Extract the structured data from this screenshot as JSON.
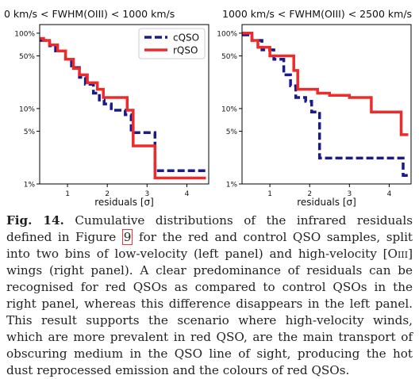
{
  "figure": {
    "caption_label": "Fig. 14.",
    "caption_text_1": "Cumulative distributions of the infrared residuals defined in Figure",
    "caption_ref": "9",
    "caption_text_2": "for the red and control QSO samples, split into two bins of low-velocity (left panel) and high-velocity [O",
    "caption_roman": "iii",
    "caption_text_3": "] wings (right panel). A clear predominance of residuals can be recognised for red QSOs as compared to control QSOs in the right panel, whereas this difference disappears in the left panel. This result supports the scenario where high-velocity winds, which are more prevalent in red QSO, are the main transport of obscuring medium in the QSO line of sight, producing the hot dust reprocessed emission and the colours of red QSOs."
  },
  "chart_data": [
    {
      "type": "line",
      "step": true,
      "title": "0 km/s < FWHM(OIII) < 1000 km/s",
      "xlabel": "residuals [σ]",
      "ylabel": "",
      "xlim": [
        0.3,
        4.55
      ],
      "ylim": [
        1,
        130
      ],
      "yscale": "log",
      "xticks": [
        1,
        2,
        3,
        4
      ],
      "yticks": [
        {
          "v": 1,
          "label": "1%"
        },
        {
          "v": 5,
          "label": "5%"
        },
        {
          "v": 10,
          "label": "10%"
        },
        {
          "v": 50,
          "label": "50%"
        },
        {
          "v": 100,
          "label": "100%"
        }
      ],
      "legend": "top-right",
      "series": [
        {
          "name": "cQSO",
          "color": "#1a1a8c",
          "dash": true,
          "x": [
            0.3,
            0.55,
            0.7,
            0.95,
            1.1,
            1.3,
            1.45,
            1.65,
            1.8,
            1.92,
            2.1,
            2.45,
            2.6,
            3.2,
            4.48
          ],
          "y": [
            80,
            68,
            58,
            45,
            35,
            26,
            21,
            16,
            13,
            11.5,
            9.5,
            8.3,
            4.8,
            1.5,
            1.5
          ]
        },
        {
          "name": "rQSO",
          "color": "#ee2b2b",
          "dash": false,
          "x": [
            0.3,
            0.4,
            0.55,
            0.75,
            0.95,
            1.15,
            1.3,
            1.5,
            1.75,
            1.9,
            2.5,
            2.65,
            3.2,
            4.48
          ],
          "y": [
            85,
            80,
            70,
            58,
            45,
            34,
            28,
            22,
            18,
            14,
            9.5,
            3.2,
            1.2,
            1.2
          ]
        }
      ]
    },
    {
      "type": "line",
      "step": true,
      "title": "1000 km/s < FWHM(OIII) < 2500 km/s",
      "xlabel": "residuals [σ]",
      "ylabel": "",
      "xlim": [
        0.3,
        4.55
      ],
      "ylim": [
        1,
        130
      ],
      "yscale": "log",
      "xticks": [
        1,
        2,
        3,
        4
      ],
      "yticks": [
        {
          "v": 1,
          "label": "1%"
        },
        {
          "v": 5,
          "label": "5%"
        },
        {
          "v": 10,
          "label": "10%"
        },
        {
          "v": 50,
          "label": "50%"
        },
        {
          "v": 100,
          "label": "100%"
        }
      ],
      "series": [
        {
          "name": "cQSO",
          "color": "#1a1a8c",
          "dash": true,
          "x": [
            0.3,
            0.55,
            0.8,
            1.1,
            1.35,
            1.52,
            1.65,
            1.9,
            2.05,
            2.25,
            4.2,
            4.35,
            4.48
          ],
          "y": [
            95,
            80,
            60,
            45,
            28,
            20,
            14,
            12.5,
            9,
            2.2,
            2.2,
            1.3,
            1.3
          ]
        },
        {
          "name": "rQSO",
          "color": "#ee2b2b",
          "dash": false,
          "x": [
            0.3,
            0.55,
            0.7,
            1.0,
            1.6,
            1.7,
            2.2,
            2.5,
            3.0,
            3.55,
            4.3,
            4.48
          ],
          "y": [
            100,
            80,
            65,
            50,
            32,
            18,
            16,
            15,
            14,
            9,
            4.5,
            4.5
          ]
        }
      ]
    }
  ]
}
